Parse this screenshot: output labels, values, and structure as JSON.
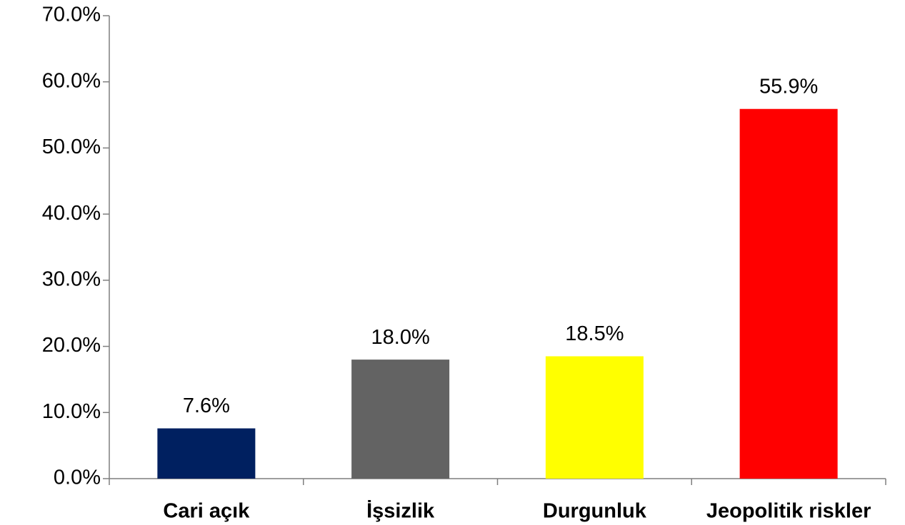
{
  "chart_data": {
    "type": "bar",
    "categories": [
      "Cari açık",
      "İşsizlik",
      "Durgunluk",
      "Jeopolitik riskler"
    ],
    "values": [
      7.6,
      18.0,
      18.5,
      55.9
    ],
    "value_labels": [
      "7.6%",
      "18.0%",
      "18.5%",
      "55.9%"
    ],
    "colors": [
      "#002060",
      "#636363",
      "#ffff00",
      "#ff0000"
    ],
    "ylim": [
      0,
      70
    ],
    "yticks": [
      {
        "value": 0,
        "label": "0.0%"
      },
      {
        "value": 10,
        "label": "10.0%"
      },
      {
        "value": 20,
        "label": "20.0%"
      },
      {
        "value": 30,
        "label": "30.0%"
      },
      {
        "value": 40,
        "label": "40.0%"
      },
      {
        "value": 50,
        "label": "50.0%"
      },
      {
        "value": 60,
        "label": "60.0%"
      },
      {
        "value": 70,
        "label": "70.0%"
      }
    ],
    "grid": false
  }
}
